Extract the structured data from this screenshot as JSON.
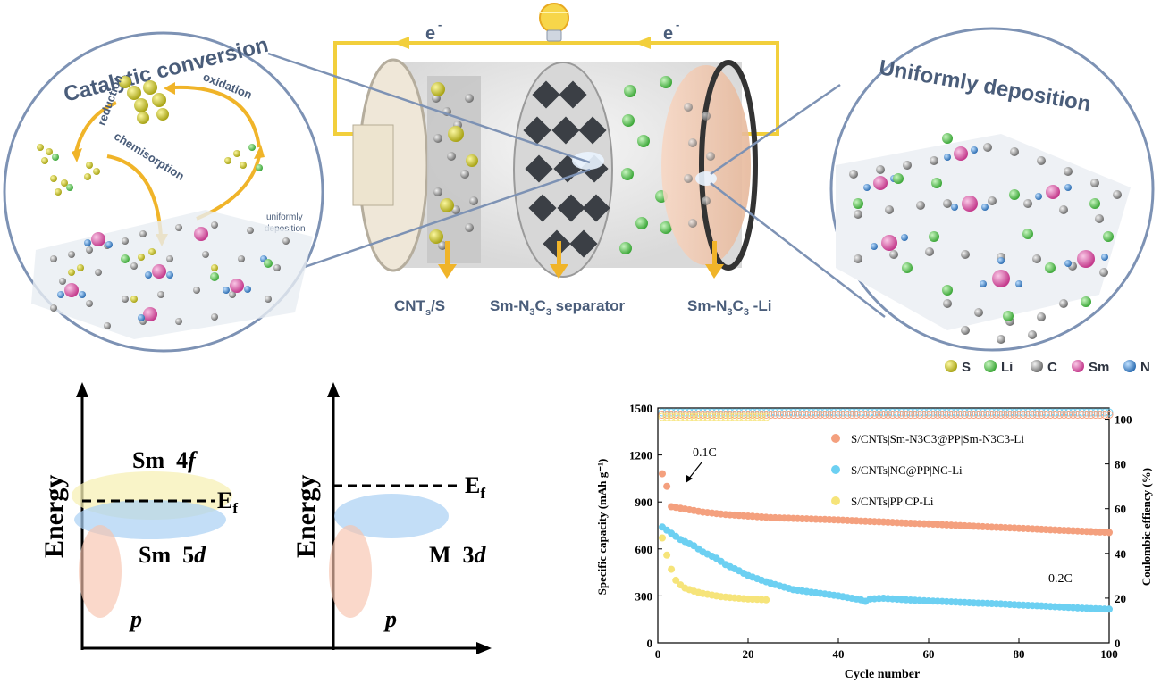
{
  "top_scheme": {
    "electron_label_left": "e",
    "electron_label_right": "e",
    "electron_sup": "-",
    "circle_left": {
      "title": "Catalytic conversion",
      "reduction": "reduction",
      "oxidation": "oxidation",
      "chemisorption": "chemisorption",
      "uniform_1": "uniformly",
      "uniform_2": "deposition"
    },
    "circle_right": {
      "title": "Uniformly deposition"
    },
    "cell_labels": {
      "cathode_main": "CNT",
      "cathode_sub": "s",
      "cathode_tail": "/S",
      "separator_a": "Sm-N",
      "separator_sub1": "3",
      "separator_b": "C",
      "separator_sub2": "3",
      "separator_c": " separator",
      "anode_a": "Sm-N",
      "anode_sub1": "3",
      "anode_b": "C",
      "anode_sub2": "3",
      "anode_c": " -Li"
    },
    "legend": [
      {
        "label": "S",
        "color": "#d8d23a"
      },
      {
        "label": "Li",
        "color": "#6fd36a"
      },
      {
        "label": "C",
        "color": "#9a9a9a"
      },
      {
        "label": "Sm",
        "color": "#e07ab8"
      },
      {
        "label": "N",
        "color": "#4f93d6"
      }
    ]
  },
  "energy_diagrams": {
    "left": {
      "ylabel": "Energy",
      "f_label": "Sm  4",
      "f_italic": "f",
      "ef": "E",
      "ef_sub": "f",
      "d_label": "Sm  5",
      "d_italic": "d",
      "p_label": "p"
    },
    "right": {
      "ylabel": "Energy",
      "ef": "E",
      "ef_sub": "f",
      "d_label": "M  3",
      "d_italic": "d",
      "p_label": "p"
    }
  },
  "chart_data": {
    "type": "scatter",
    "xlabel": "Cycle number",
    "ylabel": "Specific capacity (mAh g⁻¹)",
    "y2label": "Coulombic effiency (%)",
    "xlim": [
      0,
      100
    ],
    "ylim": [
      0,
      1500
    ],
    "y2lim": [
      0,
      105
    ],
    "xticks": [
      0,
      20,
      40,
      60,
      80,
      100
    ],
    "yticks": [
      0,
      300,
      600,
      900,
      1200,
      1500
    ],
    "y2ticks": [
      0,
      20,
      40,
      60,
      80,
      100
    ],
    "annotations": {
      "rate1": "0.1C",
      "rate2": "0.2C"
    },
    "series": [
      {
        "name": "S/CNTs|Sm-N3C3@PP|Sm-N3C3-Li",
        "color": "#f4a07e",
        "x": [
          1,
          2,
          3,
          5,
          10,
          15,
          20,
          25,
          30,
          35,
          40,
          45,
          50,
          55,
          60,
          65,
          70,
          75,
          80,
          85,
          90,
          95,
          100
        ],
        "y": [
          1080,
          1000,
          870,
          860,
          835,
          820,
          810,
          800,
          795,
          790,
          785,
          778,
          772,
          765,
          760,
          752,
          745,
          738,
          732,
          725,
          718,
          712,
          705
        ]
      },
      {
        "name": "S/CNTs|NC@PP|NC-Li",
        "color": "#6cd0f2",
        "x": [
          1,
          2,
          3,
          5,
          8,
          10,
          13,
          15,
          18,
          20,
          25,
          30,
          35,
          40,
          45,
          46,
          47,
          50,
          55,
          60,
          65,
          70,
          75,
          80,
          85,
          90,
          95,
          100
        ],
        "y": [
          740,
          720,
          700,
          660,
          620,
          580,
          540,
          500,
          460,
          430,
          380,
          340,
          320,
          300,
          275,
          265,
          280,
          285,
          275,
          268,
          262,
          255,
          250,
          242,
          236,
          228,
          220,
          215
        ]
      },
      {
        "name": "S/CNTs|PP|CP-Li",
        "color": "#f6e47a",
        "x": [
          1,
          2,
          3,
          4,
          5,
          6,
          8,
          10,
          12,
          14,
          16,
          18,
          20,
          22,
          24
        ],
        "y": [
          670,
          560,
          470,
          400,
          370,
          350,
          330,
          315,
          305,
          295,
          290,
          285,
          280,
          278,
          275
        ]
      }
    ],
    "ce_series": [
      {
        "color": "#6cd0f2",
        "value": 103
      },
      {
        "color": "#f4a07e",
        "value": 102
      },
      {
        "color": "#f6e47a",
        "value": 101
      }
    ]
  }
}
